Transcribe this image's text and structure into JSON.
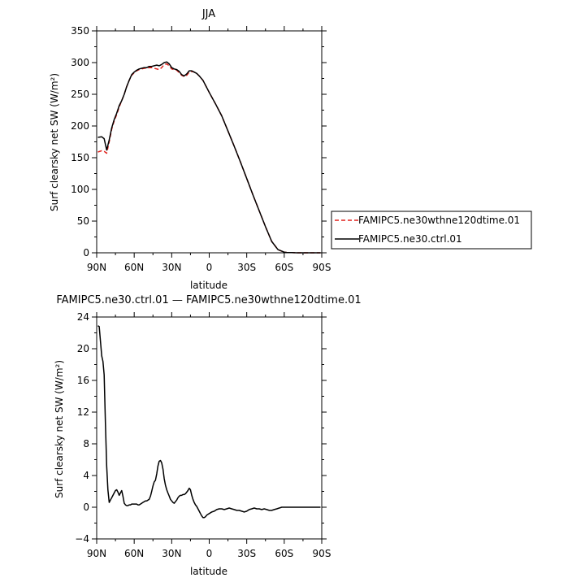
{
  "chart_data": [
    {
      "type": "line",
      "title": "JJA",
      "xlabel": "latitude",
      "ylabel": "Surf clearsky net SW (W/m²)",
      "xlim": [
        90,
        -90
      ],
      "ylim": [
        0,
        350
      ],
      "xticks": [
        90,
        60,
        30,
        0,
        -30,
        -60,
        -90
      ],
      "xtick_labels": [
        "90N",
        "60N",
        "30N",
        "0",
        "30S",
        "60S",
        "90S"
      ],
      "yticks": [
        0,
        50,
        100,
        150,
        200,
        250,
        300,
        350
      ],
      "ytick_labels": [
        "0",
        "50",
        "100",
        "150",
        "200",
        "250",
        "300",
        "350"
      ],
      "legend_position": "right",
      "series": [
        {
          "name": "FAMIPC5.ne30wthne120dtime.01",
          "color": "#e0201b",
          "dash": "dashed",
          "x": [
            89,
            86,
            84,
            82,
            80,
            78,
            76,
            74,
            72,
            70,
            68,
            66,
            64,
            62,
            60,
            58,
            56,
            54,
            52,
            50,
            48,
            46,
            44,
            42,
            40,
            38,
            36,
            34,
            32,
            30,
            28,
            26,
            24,
            22,
            20,
            18,
            16,
            14,
            12,
            10,
            8,
            5,
            0,
            -5,
            -10,
            -15,
            -20,
            -25,
            -30,
            -35,
            -40,
            -45,
            -50,
            -55,
            -60,
            -62,
            -64,
            -66,
            -68,
            -70,
            -75,
            -80,
            -85,
            -89
          ],
          "y": [
            159,
            161,
            160,
            157,
            175,
            195,
            208,
            218,
            230,
            240,
            250,
            262,
            272,
            280,
            284,
            287,
            289,
            290,
            291,
            291,
            292,
            292,
            291,
            290,
            289,
            292,
            297,
            298,
            295,
            290,
            289,
            288,
            284,
            280,
            278,
            280,
            285,
            286,
            285,
            283,
            279,
            272,
            253,
            235,
            216,
            192,
            168,
            143,
            117,
            91,
            66,
            41,
            18,
            5,
            1,
            0.5,
            0.3,
            0.2,
            0.1,
            0,
            0,
            0,
            0,
            0
          ]
        },
        {
          "name": "FAMIPC5.ne30.ctrl.01",
          "color": "#000000",
          "dash": "solid",
          "x": [
            89,
            86,
            84,
            82,
            80,
            78,
            76,
            74,
            72,
            70,
            68,
            66,
            64,
            62,
            60,
            58,
            56,
            54,
            52,
            50,
            48,
            46,
            44,
            42,
            40,
            38,
            36,
            34,
            32,
            30,
            28,
            26,
            24,
            22,
            20,
            18,
            16,
            14,
            12,
            10,
            8,
            5,
            0,
            -5,
            -10,
            -15,
            -20,
            -25,
            -30,
            -35,
            -40,
            -45,
            -50,
            -55,
            -60,
            -62,
            -64,
            -66,
            -68,
            -70,
            -75,
            -80,
            -85,
            -89
          ],
          "y": [
            182,
            183,
            180,
            162,
            178,
            197,
            210,
            220,
            232,
            240,
            250,
            262,
            272,
            281,
            285,
            288,
            290,
            291,
            292,
            292,
            294,
            294,
            295,
            296,
            295,
            297,
            300,
            301,
            298,
            292,
            290,
            289,
            286,
            281,
            279,
            282,
            287,
            287,
            285,
            283,
            279,
            272,
            253,
            235,
            216,
            192,
            168,
            143,
            117,
            91,
            66,
            41,
            18,
            5,
            1,
            0.5,
            0.3,
            0.2,
            0.1,
            0,
            0,
            0,
            0,
            0
          ]
        }
      ]
    },
    {
      "type": "line",
      "title": "FAMIPC5.ne30.ctrl.01 — FAMIPC5.ne30wthne120dtime.01",
      "xlabel": "latitude",
      "ylabel": "Surf clearsky net SW (W/m²)",
      "xlim": [
        90,
        -90
      ],
      "ylim": [
        -4,
        24
      ],
      "xticks": [
        90,
        60,
        30,
        0,
        -30,
        -60,
        -90
      ],
      "xtick_labels": [
        "90N",
        "60N",
        "30N",
        "0",
        "30S",
        "60S",
        "90S"
      ],
      "yticks": [
        -4,
        0,
        4,
        8,
        12,
        16,
        20,
        24
      ],
      "ytick_labels": [
        "−4",
        "0",
        "4",
        "8",
        "12",
        "16",
        "20",
        "24"
      ],
      "series": [
        {
          "color": "#000000",
          "dash": "solid",
          "x": [
            89,
            88,
            87,
            86,
            85,
            84,
            83,
            82,
            81,
            80,
            79,
            78,
            77,
            76,
            75,
            74,
            73,
            72,
            71,
            70,
            69,
            68,
            67,
            66,
            65,
            64,
            63,
            62,
            61,
            60,
            59,
            58,
            57,
            56,
            55,
            54,
            53,
            52,
            51,
            50,
            49,
            48,
            47,
            46,
            45,
            44,
            43,
            42,
            41,
            40,
            39,
            38,
            37,
            36,
            35,
            34,
            33,
            32,
            31,
            30,
            29,
            28,
            27,
            26,
            25,
            24,
            23,
            22,
            21,
            20,
            19,
            18,
            17,
            16,
            15,
            14,
            13,
            12,
            11,
            10,
            9,
            8,
            7,
            6,
            5,
            4,
            3,
            2,
            1,
            0,
            -2,
            -4,
            -6,
            -8,
            -10,
            -12,
            -14,
            -16,
            -18,
            -20,
            -22,
            -24,
            -26,
            -28,
            -30,
            -32,
            -34,
            -36,
            -38,
            -40,
            -42,
            -44,
            -46,
            -48,
            -50,
            -52,
            -54,
            -56,
            -58,
            -60,
            -63,
            -66,
            -70,
            -75,
            -80,
            -85,
            -89
          ],
          "y": [
            22.9,
            22.8,
            21.0,
            19.1,
            18.4,
            16.7,
            10.4,
            5.2,
            2.2,
            0.6,
            0.9,
            1.2,
            1.5,
            1.8,
            2.1,
            2.2,
            1.9,
            1.5,
            1.8,
            2.1,
            1.4,
            0.5,
            0.3,
            0.2,
            0.2,
            0.3,
            0.3,
            0.4,
            0.4,
            0.4,
            0.4,
            0.4,
            0.3,
            0.3,
            0.4,
            0.5,
            0.6,
            0.7,
            0.8,
            0.8,
            0.9,
            1.0,
            1.4,
            2.0,
            2.7,
            3.2,
            3.4,
            4.2,
            5.2,
            5.8,
            5.9,
            5.6,
            4.8,
            3.6,
            2.8,
            2.2,
            1.8,
            1.4,
            1.0,
            0.8,
            0.6,
            0.5,
            0.7,
            0.9,
            1.2,
            1.4,
            1.5,
            1.5,
            1.6,
            1.6,
            1.7,
            1.9,
            2.1,
            2.4,
            2.2,
            1.5,
            1.0,
            0.6,
            0.3,
            0.1,
            -0.2,
            -0.5,
            -0.8,
            -1.1,
            -1.3,
            -1.3,
            -1.2,
            -1.0,
            -0.9,
            -0.8,
            -0.6,
            -0.5,
            -0.3,
            -0.2,
            -0.2,
            -0.3,
            -0.2,
            -0.1,
            -0.2,
            -0.3,
            -0.4,
            -0.4,
            -0.5,
            -0.6,
            -0.5,
            -0.3,
            -0.2,
            -0.1,
            -0.2,
            -0.2,
            -0.3,
            -0.2,
            -0.3,
            -0.4,
            -0.4,
            -0.3,
            -0.2,
            -0.1,
            0.0,
            0.0,
            0.0,
            0.0,
            0.0,
            0.0,
            0.0,
            0.0,
            0.0
          ]
        }
      ]
    }
  ]
}
